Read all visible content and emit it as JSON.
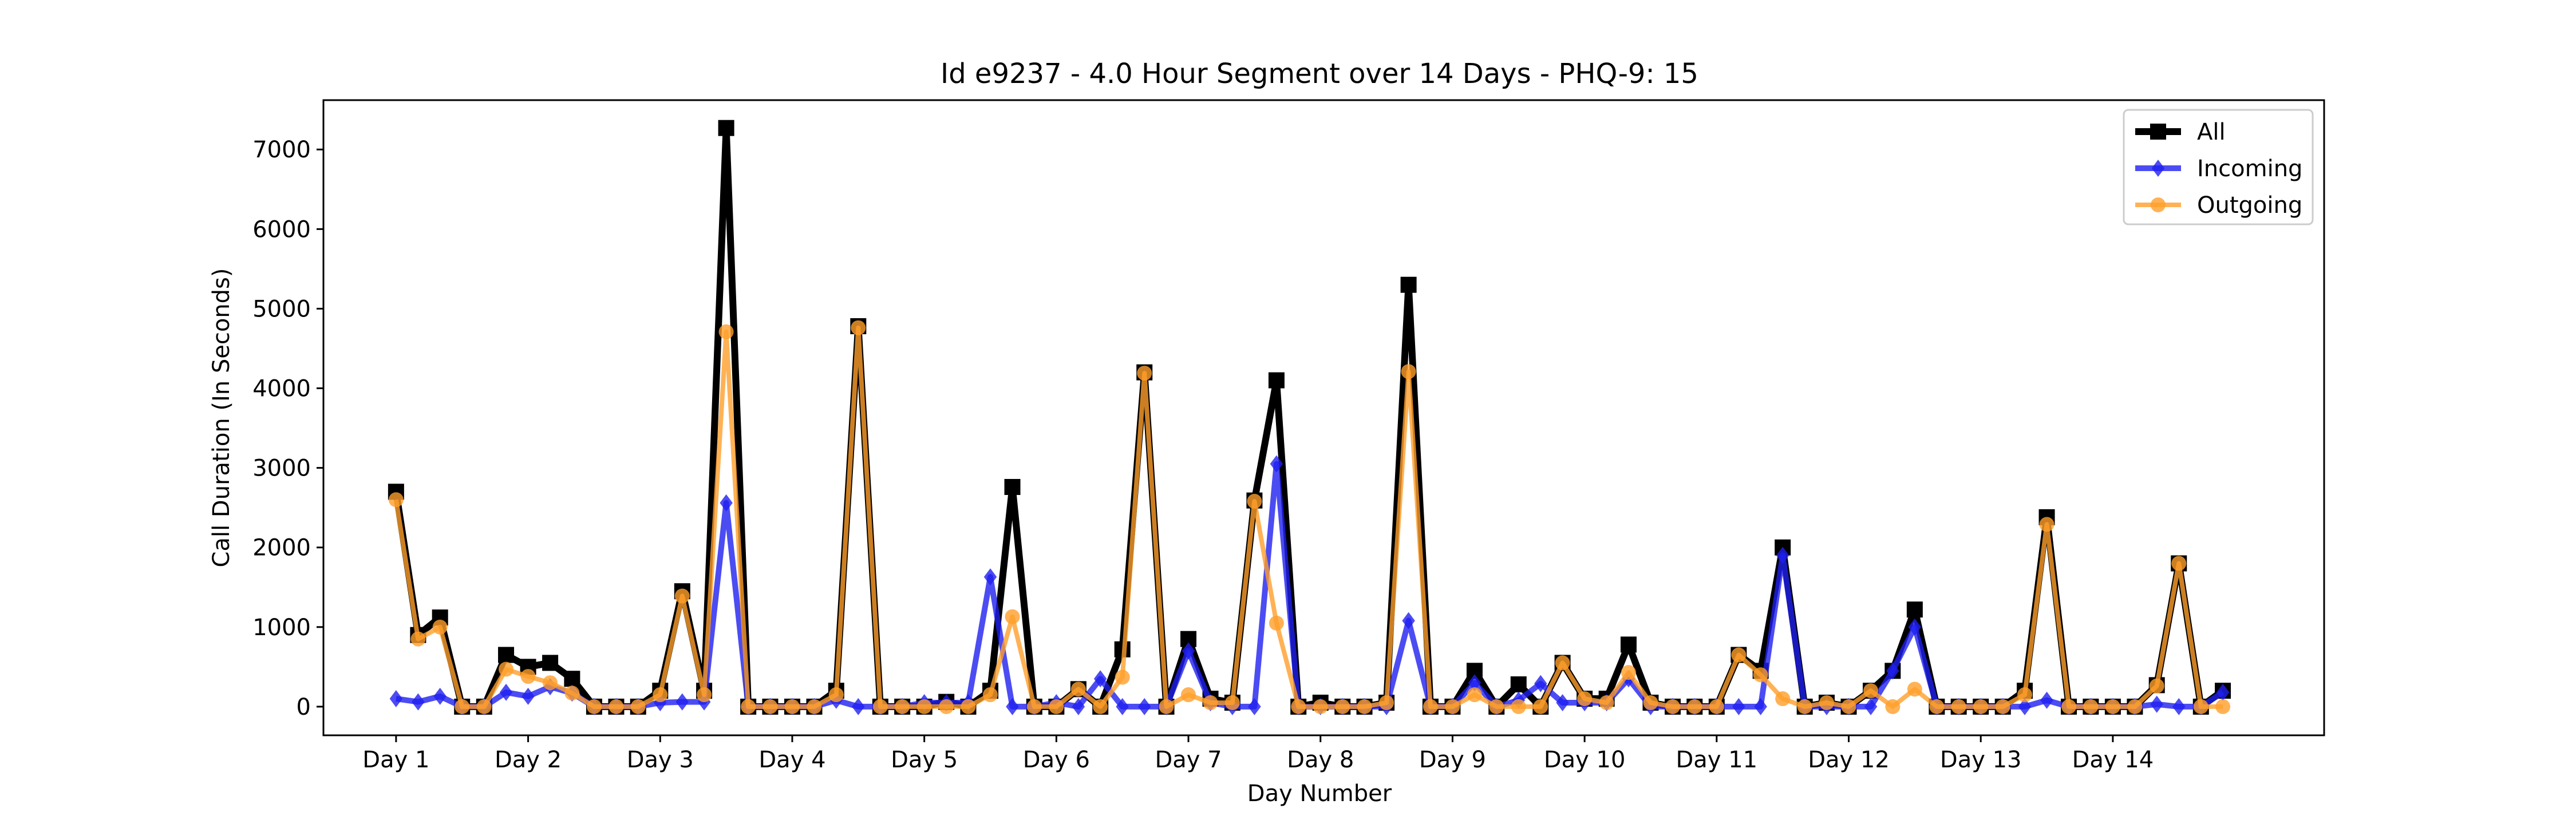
{
  "chart_data": {
    "type": "line",
    "title": "Id e9237 - 4.0 Hour Segment over 14 Days - PHQ-9: 15",
    "xlabel": "Day Number",
    "ylabel": "Call Duration (In Seconds)",
    "x_tick_labels": [
      "Day 1",
      "Day 2",
      "Day 3",
      "Day 4",
      "Day 5",
      "Day 6",
      "Day 7",
      "Day 8",
      "Day 9",
      "Day 10",
      "Day 11",
      "Day 12",
      "Day 13",
      "Day 14"
    ],
    "y_ticks": [
      0,
      1000,
      2000,
      3000,
      4000,
      5000,
      6000,
      7000
    ],
    "xlim": [
      -0.55,
      14.6
    ],
    "ylim": [
      -360,
      7620
    ],
    "grid": false,
    "legend_position": "top-right",
    "series": [
      {
        "name": "All",
        "color": "#000000",
        "marker": "square",
        "x": [
          0,
          0.167,
          0.333,
          0.5,
          0.667,
          0.833,
          1,
          1.167,
          1.333,
          1.5,
          1.667,
          1.833,
          2,
          2.167,
          2.333,
          2.5,
          2.667,
          2.833,
          3,
          3.167,
          3.333,
          3.5,
          3.667,
          3.833,
          4,
          4.167,
          4.333,
          4.5,
          4.667,
          4.833,
          5,
          5.167,
          5.333,
          5.5,
          5.667,
          5.833,
          6,
          6.167,
          6.333,
          6.5,
          6.667,
          6.833,
          7,
          7.167,
          7.333,
          7.5,
          7.667,
          7.833,
          8,
          8.167,
          8.333,
          8.5,
          8.667,
          8.833,
          9,
          9.167,
          9.333,
          9.5,
          9.667,
          9.833,
          10,
          10.167,
          10.333,
          10.5,
          10.667,
          10.833,
          11,
          11.167,
          11.333,
          11.5,
          11.667,
          11.833,
          12,
          12.167,
          12.333,
          12.5,
          12.667,
          12.833,
          13,
          13.167,
          13.333,
          13.5,
          13.667,
          13.833
        ],
        "y": [
          2700,
          900,
          1120,
          0,
          0,
          650,
          500,
          550,
          350,
          0,
          0,
          0,
          200,
          1450,
          200,
          7270,
          0,
          0,
          0,
          0,
          200,
          4780,
          0,
          0,
          0,
          60,
          0,
          200,
          2760,
          0,
          0,
          220,
          0,
          720,
          4200,
          0,
          850,
          100,
          50,
          2590,
          4100,
          0,
          50,
          0,
          0,
          50,
          5300,
          0,
          0,
          450,
          0,
          280,
          0,
          550,
          100,
          100,
          780,
          50,
          0,
          0,
          0,
          650,
          450,
          2000,
          0,
          50,
          0,
          200,
          450,
          1220,
          0,
          0,
          0,
          0,
          200,
          2380,
          0,
          0,
          0,
          0,
          270,
          1800,
          0,
          200
        ]
      },
      {
        "name": "Incoming",
        "color": "#1f1ff0",
        "marker": "diamond",
        "x": [
          0,
          0.167,
          0.333,
          0.5,
          0.667,
          0.833,
          1,
          1.167,
          1.333,
          1.5,
          1.667,
          1.833,
          2,
          2.167,
          2.333,
          2.5,
          2.667,
          2.833,
          3,
          3.167,
          3.333,
          3.5,
          3.667,
          3.833,
          4,
          4.167,
          4.333,
          4.5,
          4.667,
          4.833,
          5,
          5.167,
          5.333,
          5.5,
          5.667,
          5.833,
          6,
          6.167,
          6.333,
          6.5,
          6.667,
          6.833,
          7,
          7.167,
          7.333,
          7.5,
          7.667,
          7.833,
          8,
          8.167,
          8.333,
          8.5,
          8.667,
          8.833,
          9,
          9.167,
          9.333,
          9.5,
          9.667,
          9.833,
          10,
          10.167,
          10.333,
          10.5,
          10.667,
          10.833,
          11,
          11.167,
          11.333,
          11.5,
          11.667,
          11.833,
          12,
          12.167,
          12.333,
          12.5,
          12.667,
          12.833,
          13,
          13.167,
          13.333,
          13.5,
          13.667,
          13.833
        ],
        "y": [
          100,
          60,
          130,
          0,
          0,
          180,
          130,
          250,
          170,
          0,
          0,
          0,
          50,
          60,
          60,
          2560,
          0,
          0,
          0,
          0,
          80,
          0,
          0,
          0,
          50,
          50,
          50,
          1630,
          0,
          0,
          50,
          0,
          350,
          0,
          0,
          0,
          700,
          50,
          0,
          0,
          3050,
          0,
          0,
          0,
          0,
          0,
          1080,
          0,
          0,
          300,
          0,
          80,
          290,
          50,
          50,
          50,
          350,
          0,
          0,
          0,
          0,
          0,
          0,
          1900,
          0,
          0,
          0,
          0,
          450,
          1000,
          0,
          0,
          0,
          0,
          0,
          80,
          0,
          0,
          0,
          0,
          30,
          0,
          0,
          180
        ]
      },
      {
        "name": "Outgoing",
        "color": "#ff9f2a",
        "marker": "circle",
        "x": [
          0,
          0.167,
          0.333,
          0.5,
          0.667,
          0.833,
          1,
          1.167,
          1.333,
          1.5,
          1.667,
          1.833,
          2,
          2.167,
          2.333,
          2.5,
          2.667,
          2.833,
          3,
          3.167,
          3.333,
          3.5,
          3.667,
          3.833,
          4,
          4.167,
          4.333,
          4.5,
          4.667,
          4.833,
          5,
          5.167,
          5.333,
          5.5,
          5.667,
          5.833,
          6,
          6.167,
          6.333,
          6.5,
          6.667,
          6.833,
          7,
          7.167,
          7.333,
          7.5,
          7.667,
          7.833,
          8,
          8.167,
          8.333,
          8.5,
          8.667,
          8.833,
          9,
          9.167,
          9.333,
          9.5,
          9.667,
          9.833,
          10,
          10.167,
          10.333,
          10.5,
          10.667,
          10.833,
          11,
          11.167,
          11.333,
          11.5,
          11.667,
          11.833,
          12,
          12.167,
          12.333,
          12.5,
          12.667,
          12.833,
          13,
          13.167,
          13.333,
          13.5,
          13.667,
          13.833
        ],
        "y": [
          2600,
          850,
          1000,
          0,
          0,
          470,
          380,
          300,
          170,
          0,
          0,
          0,
          150,
          1390,
          150,
          4710,
          0,
          0,
          0,
          0,
          150,
          4760,
          0,
          0,
          0,
          0,
          0,
          150,
          1130,
          0,
          0,
          220,
          0,
          370,
          4190,
          0,
          150,
          50,
          50,
          2580,
          1050,
          0,
          0,
          0,
          0,
          50,
          4210,
          0,
          0,
          150,
          0,
          0,
          0,
          550,
          100,
          50,
          430,
          50,
          0,
          0,
          0,
          650,
          400,
          100,
          0,
          50,
          0,
          200,
          0,
          220,
          0,
          0,
          0,
          0,
          150,
          2290,
          0,
          0,
          0,
          0,
          260,
          1800,
          0,
          0
        ]
      }
    ]
  }
}
